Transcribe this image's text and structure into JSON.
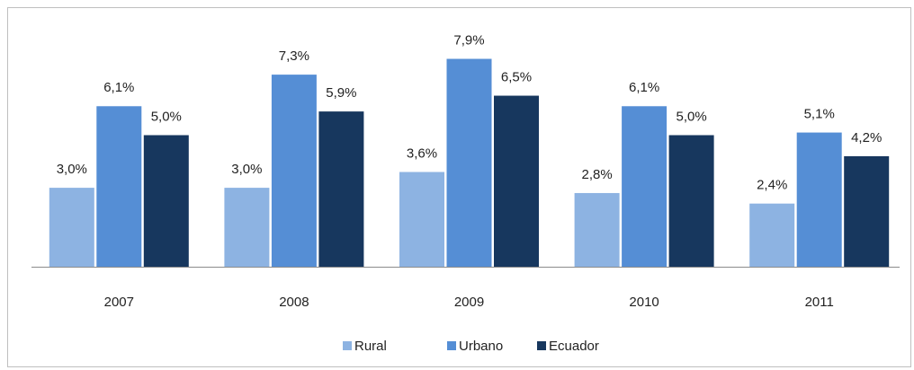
{
  "chart_data": {
    "type": "bar",
    "categories": [
      "2007",
      "2008",
      "2009",
      "2010",
      "2011"
    ],
    "series": [
      {
        "name": "Rural",
        "color": "#8db3e2",
        "values": [
          3.0,
          3.0,
          3.6,
          2.8,
          2.4
        ],
        "value_labels": [
          "3,0%",
          "3,0%",
          "3,6%",
          "2,8%",
          "2,4%"
        ]
      },
      {
        "name": "Urbano",
        "color": "#558ed5",
        "values": [
          6.1,
          7.3,
          7.9,
          6.1,
          5.1
        ],
        "value_labels": [
          "6,1%",
          "7,3%",
          "7,9%",
          "6,1%",
          "5,1%"
        ]
      },
      {
        "name": "Ecuador",
        "color": "#17375e",
        "values": [
          5.0,
          5.9,
          6.5,
          5.0,
          4.2
        ],
        "value_labels": [
          "5,0%",
          "5,9%",
          "6,5%",
          "5,0%",
          "4,2%"
        ]
      }
    ],
    "legend": "bottom"
  }
}
